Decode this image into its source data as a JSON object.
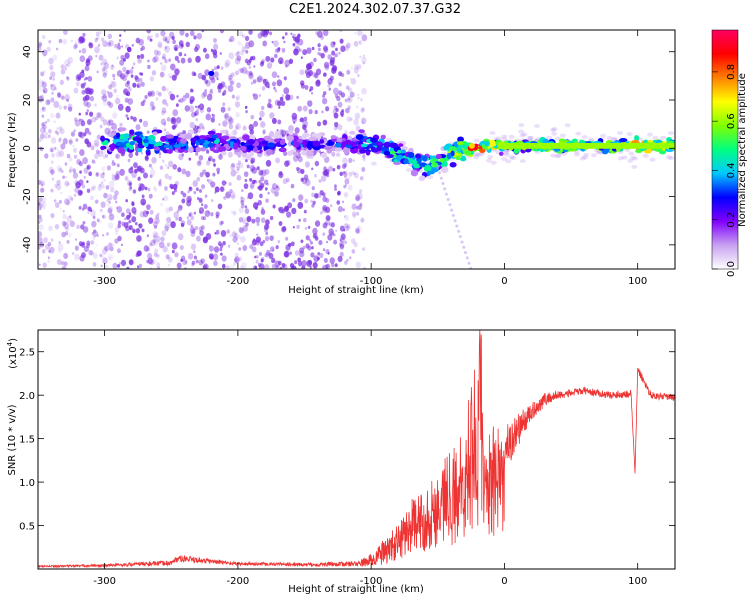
{
  "title": "C2E1.2024.302.07.37.G32",
  "colors": {
    "snr_line": "#ee3333",
    "spectrogram_scatter": "#7a2ee0",
    "axis": "#000000"
  },
  "chart_data": [
    {
      "type": "heatmap",
      "name": "spectrogram",
      "xlabel": "Height of straight line (km)",
      "ylabel": "Frequency (Hz)",
      "xlim": [
        -350,
        128
      ],
      "ylim": [
        -50,
        49
      ],
      "xticks": [
        -300,
        -200,
        -100,
        0,
        100
      ],
      "yticks": [
        -40,
        -20,
        0,
        20,
        40
      ],
      "colorbar": {
        "label": "Normalized spectral amplitude",
        "range": [
          0,
          0.97
        ],
        "ticks": [
          "0.0",
          "0.2",
          "0.4",
          "0.6",
          "0.8"
        ],
        "colormap": [
          "#ffffff",
          "#c8a0f0",
          "#8000ff",
          "#0000ff",
          "#00c8ff",
          "#00ff80",
          "#80ff00",
          "#ffff00",
          "#ff8000",
          "#ff0000",
          "#ff0060"
        ]
      },
      "ridge": {
        "x": [
          -300,
          -280,
          -260,
          -240,
          -220,
          -200,
          -180,
          -160,
          -140,
          -120,
          -100,
          -90,
          -80,
          -70,
          -60,
          -50,
          -40,
          -30,
          -20,
          -10,
          0,
          20,
          40,
          60,
          80,
          100,
          128
        ],
        "freq": [
          2,
          3,
          2,
          1,
          3,
          2,
          1,
          2,
          1,
          2,
          2,
          0,
          -3,
          -5,
          -7,
          -6,
          -2,
          0,
          0,
          1,
          1,
          1,
          1,
          1,
          1,
          1,
          1
        ],
        "amp": [
          0.45,
          0.55,
          0.5,
          0.35,
          0.4,
          0.35,
          0.3,
          0.35,
          0.3,
          0.35,
          0.45,
          0.5,
          0.55,
          0.55,
          0.55,
          0.5,
          0.6,
          0.7,
          0.9,
          0.75,
          0.6,
          0.6,
          0.62,
          0.62,
          0.62,
          0.8,
          0.6
        ]
      }
    },
    {
      "type": "line",
      "name": "snr",
      "xlabel": "Height of straight line (km)",
      "ylabel": "SNR (10 * v/v)",
      "yscale_label": "(x10",
      "yscale_exp": "4",
      "yscale_close": ")",
      "xlim": [
        -350,
        128
      ],
      "ylim": [
        0,
        2.75
      ],
      "xticks": [
        -300,
        -200,
        -100,
        0,
        100
      ],
      "yticks": [
        "0.5",
        "1.0",
        "1.5",
        "2.0",
        "2.5"
      ],
      "ytick_values": [
        0.5,
        1.0,
        1.5,
        2.0,
        2.5
      ],
      "series": [
        {
          "x": [
            -350,
            -300,
            -250,
            -245,
            -200,
            -150,
            -110,
            -100,
            -90,
            -80,
            -70,
            -60,
            -50,
            -40,
            -30,
            -25,
            -20,
            -18,
            -15,
            -10,
            0,
            10,
            20,
            30,
            40,
            60,
            80,
            95,
            98,
            100,
            110,
            128
          ],
          "y": [
            0.03,
            0.04,
            0.07,
            0.12,
            0.06,
            0.05,
            0.06,
            0.1,
            0.2,
            0.3,
            0.5,
            0.55,
            0.7,
            0.9,
            1.1,
            1.5,
            1.6,
            2.75,
            0.9,
            1.2,
            1.35,
            1.6,
            1.8,
            1.95,
            2.0,
            2.05,
            2.0,
            2.02,
            1.1,
            2.3,
            2.0,
            1.97
          ],
          "noise": [
            0.01,
            0.015,
            0.03,
            0.04,
            0.02,
            0.02,
            0.03,
            0.08,
            0.15,
            0.22,
            0.3,
            0.35,
            0.45,
            0.55,
            0.6,
            0.7,
            0.8,
            0.4,
            0.5,
            0.45,
            0.3,
            0.2,
            0.1,
            0.08,
            0.05,
            0.04,
            0.04,
            0.05,
            0.0,
            0.05,
            0.04,
            0.04
          ]
        }
      ]
    }
  ]
}
